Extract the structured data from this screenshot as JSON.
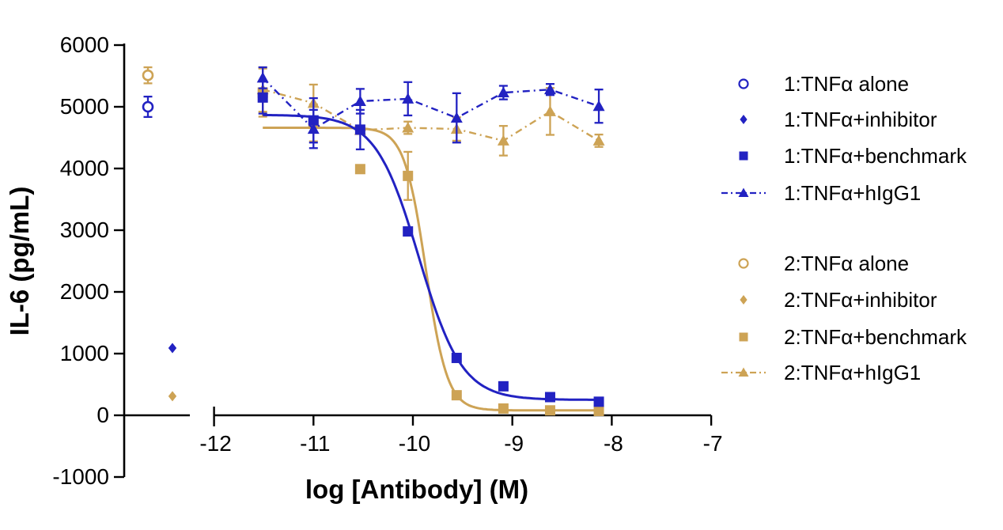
{
  "figure": {
    "background": "#ffffff"
  },
  "chart_data": {
    "type": "scatter",
    "title": "",
    "xlabel": "log [Antibody] (M)",
    "ylabel": "IL-6 (pg/mL)",
    "xlim": [
      -12,
      -7
    ],
    "ylim": [
      -1000,
      6000
    ],
    "x_ticks": [
      -12,
      -11,
      -10,
      -9,
      -8,
      -7
    ],
    "y_ticks": [
      -1000,
      0,
      1000,
      2000,
      3000,
      4000,
      5000,
      6000
    ],
    "x_axis_break": true,
    "grid": false,
    "legend_position": "right",
    "colors": {
      "group1": "#2222c2",
      "group2": "#cda355"
    },
    "x": [
      -11.51,
      -11.0,
      -10.53,
      -10.05,
      -9.56,
      -9.09,
      -8.62,
      -8.13
    ],
    "series": [
      {
        "name": "1:TNFα alone",
        "group": 1,
        "marker": "open-circle",
        "no_antibody": true,
        "pre_axis_slot": 0,
        "values": [
          5000
        ],
        "errors": [
          165
        ]
      },
      {
        "name": "1:TNFα+inhibitor",
        "group": 1,
        "marker": "diamond",
        "no_antibody": true,
        "pre_axis_slot": 1,
        "values": [
          1090
        ],
        "errors": [
          0
        ]
      },
      {
        "name": "1:TNFα+benchmark",
        "group": 1,
        "marker": "square",
        "fit": {
          "top": 4870,
          "bottom": 250,
          "logec50": -9.94,
          "hill": 2.0
        },
        "values": [
          5150,
          4780,
          4630,
          2980,
          930,
          470,
          295,
          220
        ],
        "errors": [
          260,
          360,
          320,
          0,
          0,
          0,
          0,
          0
        ]
      },
      {
        "name": "1:TNFα+hIgG1",
        "group": 1,
        "marker": "triangle",
        "line": "dashdot",
        "values": [
          5470,
          4640,
          5090,
          5130,
          4820,
          5230,
          5280,
          5010
        ],
        "errors": [
          170,
          310,
          200,
          270,
          400,
          110,
          90,
          270
        ]
      },
      {
        "name": "2:TNFα alone",
        "group": 2,
        "marker": "open-circle",
        "no_antibody": true,
        "pre_axis_slot": 0,
        "values": [
          5510
        ],
        "errors": [
          130
        ]
      },
      {
        "name": "2:TNFα+inhibitor",
        "group": 2,
        "marker": "diamond",
        "no_antibody": true,
        "pre_axis_slot": 1,
        "values": [
          310
        ],
        "errors": [
          0
        ]
      },
      {
        "name": "2:TNFα+benchmark",
        "group": 2,
        "marker": "square",
        "fit": {
          "top": 4660,
          "bottom": 80,
          "logec50": -9.87,
          "hill": 4.0
        },
        "values": [
          5230,
          4740,
          3990,
          3880,
          325,
          110,
          80,
          70
        ],
        "errors": [
          390,
          300,
          0,
          390,
          0,
          0,
          0,
          0
        ]
      },
      {
        "name": "2:TNFα+hIgG1",
        "group": 2,
        "marker": "triangle",
        "line": "dashdot",
        "values": [
          5280,
          5060,
          4620,
          4660,
          4640,
          4450,
          4925,
          4450
        ],
        "errors": [
          360,
          300,
          0,
          100,
          190,
          240,
          380,
          100
        ]
      }
    ]
  }
}
